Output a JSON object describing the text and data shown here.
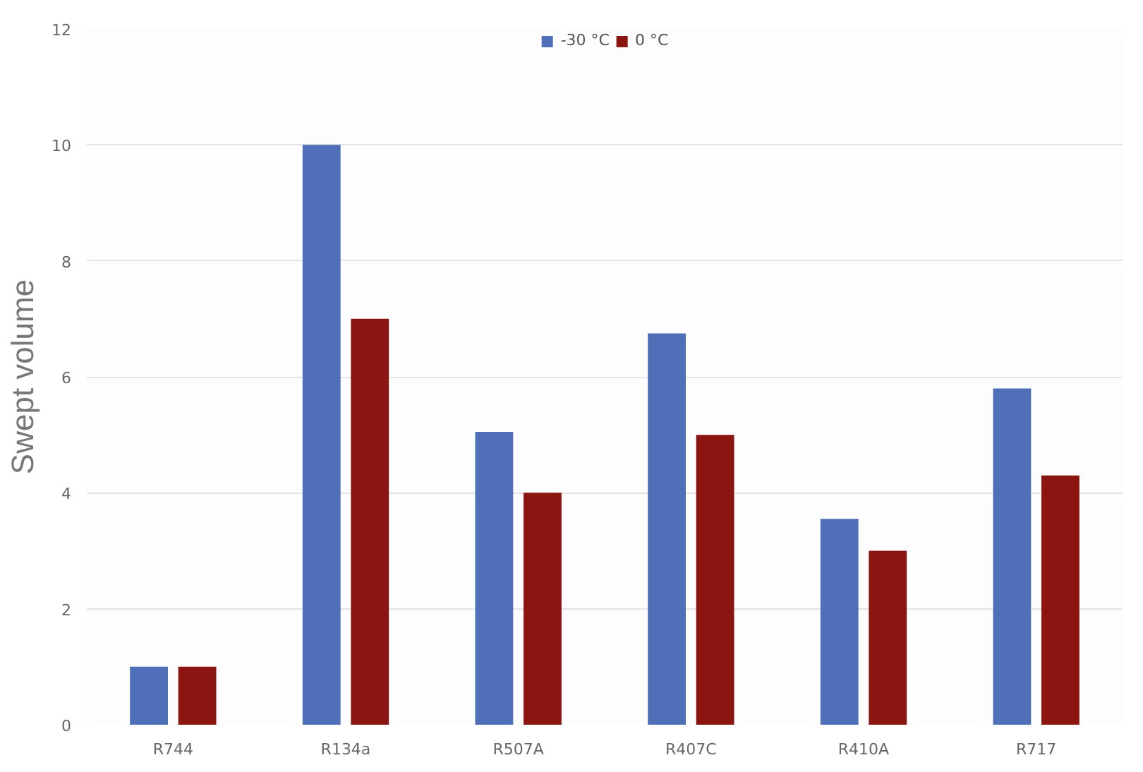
{
  "chart_data": {
    "type": "bar",
    "ylabel": "Swept volume",
    "categories": [
      "R744",
      "R134a",
      "R507A",
      "R407C",
      "R410A",
      "R717"
    ],
    "series": [
      {
        "name": "-30 °C",
        "color": "#4f6fb8",
        "values": [
          1,
          10,
          5.05,
          6.75,
          3.55,
          5.8
        ]
      },
      {
        "name": "0 °C",
        "color": "#8b1510",
        "values": [
          1,
          7,
          4,
          5,
          3,
          4.3
        ]
      }
    ],
    "ylim": [
      0,
      12
    ],
    "yticks": [
      0,
      2,
      4,
      6,
      8,
      10,
      12
    ],
    "grid": "y",
    "legend": "top"
  }
}
